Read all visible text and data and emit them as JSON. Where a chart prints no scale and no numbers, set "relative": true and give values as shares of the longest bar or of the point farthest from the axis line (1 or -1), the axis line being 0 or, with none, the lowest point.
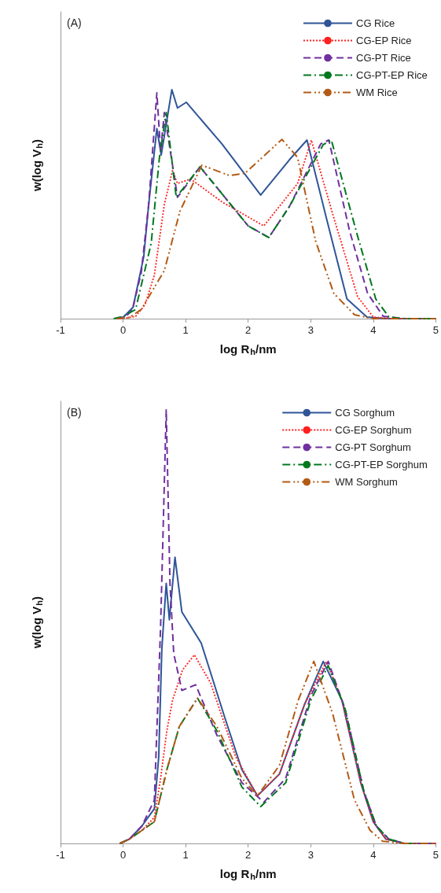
{
  "chart_data": [
    {
      "type": "line",
      "title": "(A)",
      "xlabel": "log R$_{h}$/nm",
      "ylabel": "w(log V$_{h}$)",
      "relative": true,
      "xlim": [
        -1,
        5
      ],
      "xticks": [
        -1,
        0,
        1,
        2,
        3,
        4,
        5
      ],
      "tick_labels": "x",
      "grid": false,
      "legend": "top right",
      "marker": "none",
      "series": [
        {
          "name": "CG Rice",
          "color": "#2f5597",
          "line_style": "solid",
          "x": [
            -0.1,
            0,
            0.16,
            0.33,
            0.41,
            0.54,
            0.61,
            0.78,
            0.87,
            1.01,
            1.58,
            2.2,
            2.66,
            2.94,
            3.25,
            3.58,
            3.9,
            4.2,
            5
          ],
          "values": [
            0,
            0.005,
            0.05,
            0.27,
            0.5,
            0.83,
            0.715,
            1.0,
            0.92,
            0.945,
            0.763,
            0.54,
            0.694,
            0.78,
            0.44,
            0.086,
            0.007,
            0,
            0
          ]
        },
        {
          "name": "CG-EP Rice",
          "color": "#ff2020",
          "line_style": "dotted",
          "x": [
            -0.1,
            0.05,
            0.2,
            0.35,
            0.5,
            0.66,
            0.79,
            0.87,
            1.08,
            1.58,
            2.25,
            2.79,
            3.01,
            3.37,
            3.75,
            4.0,
            4.3,
            5
          ],
          "values": [
            0,
            0.003,
            0.01,
            0.06,
            0.19,
            0.5,
            0.646,
            0.59,
            0.61,
            0.51,
            0.405,
            0.59,
            0.78,
            0.44,
            0.096,
            0.007,
            0,
            0
          ]
        },
        {
          "name": "CG-PT Rice",
          "color": "#7030a0",
          "line_style": "dashed",
          "x": [
            -0.1,
            0.05,
            0.15,
            0.29,
            0.41,
            0.54,
            0.6,
            0.66,
            0.87,
            1.23,
            2.0,
            2.33,
            2.66,
            3.16,
            3.29,
            3.62,
            3.91,
            4.16,
            4.5,
            5
          ],
          "values": [
            0,
            0.01,
            0.04,
            0.2,
            0.5,
            0.986,
            0.73,
            0.9,
            0.53,
            0.663,
            0.405,
            0.354,
            0.49,
            0.763,
            0.78,
            0.385,
            0.11,
            0.01,
            0,
            0
          ]
        },
        {
          "name": "CG-PT-EP Rice",
          "color": "#00781e",
          "line_style": "dashdot",
          "x": [
            -0.15,
            0,
            0.2,
            0.45,
            0.58,
            0.69,
            0.85,
            1.23,
            2.0,
            2.33,
            2.66,
            3.2,
            3.33,
            3.75,
            4.04,
            4.25,
            4.5,
            5
          ],
          "values": [
            0,
            0.01,
            0.04,
            0.33,
            0.7,
            0.9,
            0.53,
            0.663,
            0.405,
            0.354,
            0.49,
            0.76,
            0.78,
            0.36,
            0.086,
            0.007,
            0,
            0
          ]
        },
        {
          "name": "WM Rice",
          "color": "#b35a14",
          "line_style": "dashdotdot",
          "x": [
            -0.1,
            0.1,
            0.29,
            0.66,
            0.91,
            1.26,
            1.7,
            1.95,
            2.54,
            2.79,
            3.08,
            3.37,
            3.7,
            4.0,
            5
          ],
          "values": [
            0,
            0.005,
            0.04,
            0.21,
            0.47,
            0.67,
            0.625,
            0.635,
            0.783,
            0.704,
            0.337,
            0.11,
            0.017,
            0,
            0
          ]
        }
      ]
    },
    {
      "type": "line",
      "title": "(B)",
      "xlabel": "log R$_{h}$/nm",
      "ylabel": "w(log V$_{h}$)",
      "relative": true,
      "xlim": [
        -1,
        5
      ],
      "xticks": [
        -1,
        0,
        1,
        2,
        3,
        4,
        5
      ],
      "tick_labels": "x",
      "grid": false,
      "legend": "top right",
      "marker": "none",
      "series": [
        {
          "name": "CG Sorghum",
          "color": "#2f5597",
          "line_style": "solid",
          "x": [
            -0.05,
            0.1,
            0.3,
            0.4,
            0.5,
            0.57,
            0.62,
            0.69,
            0.74,
            0.83,
            0.94,
            1.25,
            1.62,
            1.9,
            2.15,
            2.5,
            2.9,
            3.2,
            3.5,
            3.8,
            4.0,
            4.2,
            4.5,
            5
          ],
          "values": [
            0,
            0.01,
            0.04,
            0.06,
            0.08,
            0.2,
            0.45,
            0.6,
            0.516,
            0.66,
            0.534,
            0.462,
            0.293,
            0.17,
            0.11,
            0.16,
            0.32,
            0.42,
            0.33,
            0.14,
            0.05,
            0.01,
            0,
            0
          ]
        },
        {
          "name": "CG-EP Sorghum",
          "color": "#ff2020",
          "line_style": "dotted",
          "x": [
            -0.05,
            0.1,
            0.3,
            0.5,
            0.6,
            0.7,
            0.79,
            0.95,
            1.14,
            1.4,
            1.8,
            2.15,
            2.5,
            2.9,
            3.25,
            3.5,
            3.8,
            4.0,
            4.2,
            4.5,
            5
          ],
          "values": [
            0,
            0.01,
            0.03,
            0.06,
            0.15,
            0.26,
            0.33,
            0.4,
            0.435,
            0.37,
            0.2,
            0.11,
            0.16,
            0.32,
            0.42,
            0.33,
            0.14,
            0.05,
            0.01,
            0,
            0
          ]
        },
        {
          "name": "CG-PT Sorghum",
          "color": "#7030a0",
          "line_style": "dashed",
          "x": [
            -0.05,
            0.1,
            0.3,
            0.5,
            0.6,
            0.69,
            0.75,
            0.81,
            0.94,
            1.16,
            1.5,
            1.9,
            2.25,
            2.6,
            3.0,
            3.28,
            3.55,
            3.85,
            4.05,
            4.25,
            4.5,
            5
          ],
          "values": [
            0,
            0.01,
            0.04,
            0.1,
            0.5,
            1.0,
            0.6,
            0.438,
            0.353,
            0.366,
            0.25,
            0.14,
            0.095,
            0.15,
            0.34,
            0.42,
            0.31,
            0.12,
            0.04,
            0.01,
            0,
            0
          ]
        },
        {
          "name": "CG-PT-EP Sorghum",
          "color": "#00781e",
          "line_style": "dashdot",
          "x": [
            -0.05,
            0.1,
            0.3,
            0.5,
            0.7,
            0.9,
            1.19,
            1.5,
            1.9,
            2.2,
            2.6,
            3.0,
            3.28,
            3.55,
            3.85,
            4.05,
            4.25,
            4.5,
            5
          ],
          "values": [
            0,
            0.01,
            0.03,
            0.05,
            0.17,
            0.27,
            0.335,
            0.26,
            0.13,
            0.085,
            0.14,
            0.33,
            0.41,
            0.31,
            0.12,
            0.04,
            0.01,
            0,
            0
          ]
        },
        {
          "name": "WM Sorghum",
          "color": "#b35a14",
          "line_style": "dashdotdot",
          "x": [
            -0.05,
            0.1,
            0.3,
            0.5,
            0.7,
            0.9,
            1.19,
            1.5,
            1.9,
            2.15,
            2.5,
            2.8,
            3.05,
            3.35,
            3.7,
            3.95,
            4.15,
            4.5,
            5
          ],
          "values": [
            0,
            0.01,
            0.03,
            0.05,
            0.17,
            0.27,
            0.335,
            0.27,
            0.15,
            0.11,
            0.18,
            0.33,
            0.42,
            0.3,
            0.1,
            0.03,
            0.005,
            0,
            0
          ]
        }
      ]
    }
  ]
}
